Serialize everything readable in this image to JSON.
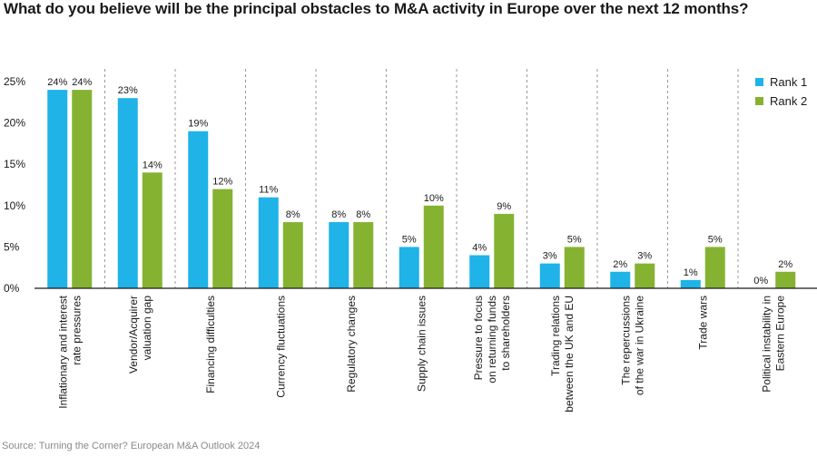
{
  "title": "What do you believe will be the principal obstacles to M&A activity in Europe over the next 12 months?",
  "source": "Source: Turning the Corner? European M&A Outlook 2024",
  "chart_data": {
    "type": "bar",
    "title": "What do you believe will be the principal obstacles to M&A activity in Europe over the next 12 months?",
    "xlabel": "",
    "ylabel": "",
    "ylim": [
      0,
      25
    ],
    "yticks": [
      "0%",
      "5%",
      "10%",
      "15%",
      "20%",
      "25%"
    ],
    "legend_position": "right",
    "categories": [
      [
        "Inflationary and interest",
        "rate pressures"
      ],
      [
        "Vendor/Acquirer",
        "valuation gap"
      ],
      [
        "Financing difficulties"
      ],
      [
        "Currency fluctuations"
      ],
      [
        "Regulatory changes"
      ],
      [
        "Supply chain issues"
      ],
      [
        "Pressure to focus",
        "on returning funds",
        "to shareholders"
      ],
      [
        "Trading relations",
        "between the UK and EU"
      ],
      [
        "The repercussions",
        "of the war in Ukraine"
      ],
      [
        "Trade wars"
      ],
      [
        "Political instability in",
        "Eastern Europe"
      ]
    ],
    "series": [
      {
        "name": "Rank 1",
        "color": "#1fb3e8",
        "values": [
          24,
          23,
          19,
          11,
          8,
          5,
          4,
          3,
          2,
          1,
          0
        ],
        "labels": [
          "24%",
          "23%",
          "19%",
          "11%",
          "8%",
          "5%",
          "4%",
          "3%",
          "2%",
          "1%",
          "0%"
        ]
      },
      {
        "name": "Rank 2",
        "color": "#86b232",
        "values": [
          24,
          14,
          12,
          8,
          8,
          10,
          9,
          5,
          3,
          5,
          2
        ],
        "labels": [
          "24%",
          "14%",
          "12%",
          "8%",
          "8%",
          "10%",
          "9%",
          "5%",
          "3%",
          "5%",
          "2%"
        ]
      }
    ]
  }
}
